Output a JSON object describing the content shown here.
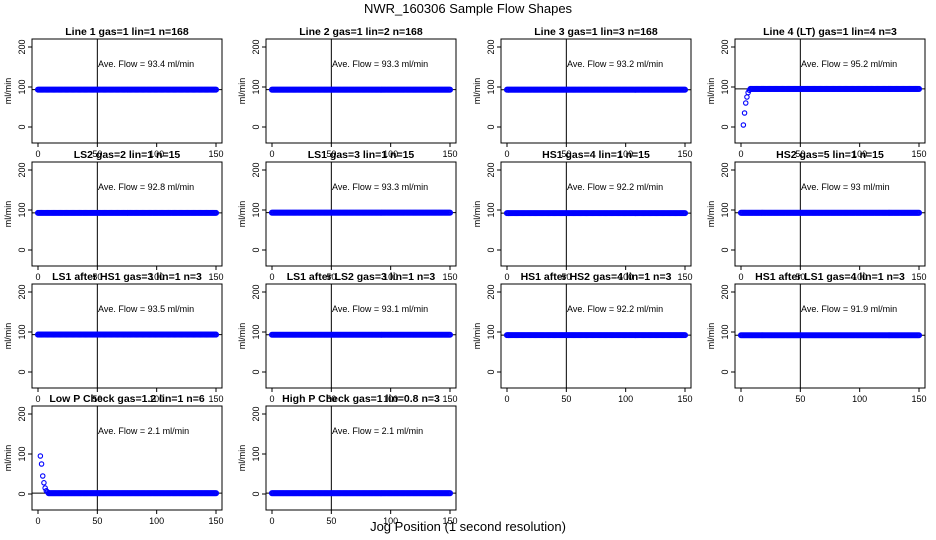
{
  "figure": {
    "title": "NWR_160306  Sample Flow Shapes",
    "xlabel": "Jog Position (1 second resolution)"
  },
  "colors": {
    "points": "#0000ff",
    "axes": "#000000"
  },
  "chart_data": [
    {
      "type": "scatter",
      "title": "Line 1 gas=1 lin=1 n=168",
      "ylabel": "ml/min",
      "annotation": "Ave. Flow = 93.4  ml/min",
      "xlim": [
        0,
        150
      ],
      "ylim": [
        -40,
        220
      ],
      "xticks": [
        0,
        50,
        100,
        150
      ],
      "yticks": [
        0,
        100,
        200
      ],
      "vline": 50,
      "hline": 93.4,
      "shape": "flat",
      "level": 93.4
    },
    {
      "type": "scatter",
      "title": "Line 2 gas=1 lin=2 n=168",
      "ylabel": "ml/min",
      "annotation": "Ave. Flow = 93.3  ml/min",
      "xlim": [
        0,
        150
      ],
      "ylim": [
        -40,
        220
      ],
      "xticks": [
        0,
        50,
        100,
        150
      ],
      "yticks": [
        0,
        100,
        200
      ],
      "vline": 50,
      "hline": 93.3,
      "shape": "flat",
      "level": 93.3
    },
    {
      "type": "scatter",
      "title": "Line 3 gas=1 lin=3 n=168",
      "ylabel": "ml/min",
      "annotation": "Ave. Flow = 93.2  ml/min",
      "xlim": [
        0,
        150
      ],
      "ylim": [
        -40,
        220
      ],
      "xticks": [
        0,
        50,
        100,
        150
      ],
      "yticks": [
        0,
        100,
        200
      ],
      "vline": 50,
      "hline": 93.2,
      "shape": "flat",
      "level": 93.2
    },
    {
      "type": "scatter",
      "title": "Line 4 (LT) gas=1 lin=4 n=3",
      "ylabel": "ml/min",
      "annotation": "Ave. Flow = 95.2  ml/min",
      "xlim": [
        0,
        150
      ],
      "ylim": [
        -40,
        220
      ],
      "xticks": [
        0,
        50,
        100,
        150
      ],
      "yticks": [
        0,
        100,
        200
      ],
      "vline": 50,
      "hline": 95.2,
      "shape": "rise",
      "level": 95.2,
      "start_points": [
        [
          2,
          5
        ],
        [
          3,
          35
        ],
        [
          4,
          60
        ],
        [
          5,
          75
        ],
        [
          6,
          86
        ],
        [
          7,
          92
        ]
      ]
    },
    {
      "type": "scatter",
      "title": "LS2 gas=2 lin=1 n=15",
      "ylabel": "ml/min",
      "annotation": "Ave. Flow = 92.8  ml/min",
      "xlim": [
        0,
        150
      ],
      "ylim": [
        -40,
        220
      ],
      "xticks": [
        0,
        50,
        100,
        150
      ],
      "yticks": [
        0,
        100,
        200
      ],
      "vline": 50,
      "hline": 92.8,
      "shape": "flat",
      "level": 92.8
    },
    {
      "type": "scatter",
      "title": "LS1 gas=3 lin=1 n=15",
      "ylabel": "ml/min",
      "annotation": "Ave. Flow = 93.3  ml/min",
      "xlim": [
        0,
        150
      ],
      "ylim": [
        -40,
        220
      ],
      "xticks": [
        0,
        50,
        100,
        150
      ],
      "yticks": [
        0,
        100,
        200
      ],
      "vline": 50,
      "hline": 93.3,
      "shape": "flat",
      "level": 93.3
    },
    {
      "type": "scatter",
      "title": "HS1 gas=4 lin=1 n=15",
      "ylabel": "ml/min",
      "annotation": "Ave. Flow = 92.2  ml/min",
      "xlim": [
        0,
        150
      ],
      "ylim": [
        -40,
        220
      ],
      "xticks": [
        0,
        50,
        100,
        150
      ],
      "yticks": [
        0,
        100,
        200
      ],
      "vline": 50,
      "hline": 92.2,
      "shape": "flat",
      "level": 92.2
    },
    {
      "type": "scatter",
      "title": "HS2 gas=5 lin=1 n=15",
      "ylabel": "ml/min",
      "annotation": "Ave. Flow = 93  ml/min",
      "xlim": [
        0,
        150
      ],
      "ylim": [
        -40,
        220
      ],
      "xticks": [
        0,
        50,
        100,
        150
      ],
      "yticks": [
        0,
        100,
        200
      ],
      "vline": 50,
      "hline": 93,
      "shape": "flat",
      "level": 93
    },
    {
      "type": "scatter",
      "title": "LS1 after HS1 gas=3 lin=1 n=3",
      "ylabel": "ml/min",
      "annotation": "Ave. Flow = 93.5  ml/min",
      "xlim": [
        0,
        150
      ],
      "ylim": [
        -40,
        220
      ],
      "xticks": [
        0,
        50,
        100,
        150
      ],
      "yticks": [
        0,
        100,
        200
      ],
      "vline": 50,
      "hline": 93.5,
      "shape": "flat",
      "level": 93.5
    },
    {
      "type": "scatter",
      "title": "LS1 after LS2 gas=3 lin=1 n=3",
      "ylabel": "ml/min",
      "annotation": "Ave. Flow = 93.1  ml/min",
      "xlim": [
        0,
        150
      ],
      "ylim": [
        -40,
        220
      ],
      "xticks": [
        0,
        50,
        100,
        150
      ],
      "yticks": [
        0,
        100,
        200
      ],
      "vline": 50,
      "hline": 93.1,
      "shape": "flat",
      "level": 93.1
    },
    {
      "type": "scatter",
      "title": "HS1 after HS2 gas=4 lin=1 n=3",
      "ylabel": "ml/min",
      "annotation": "Ave. Flow = 92.2  ml/min",
      "xlim": [
        0,
        150
      ],
      "ylim": [
        -40,
        220
      ],
      "xticks": [
        0,
        50,
        100,
        150
      ],
      "yticks": [
        0,
        100,
        200
      ],
      "vline": 50,
      "hline": 92.2,
      "shape": "flat",
      "level": 92.2
    },
    {
      "type": "scatter",
      "title": "HS1 after LS1 gas=4 lin=1 n=3",
      "ylabel": "ml/min",
      "annotation": "Ave. Flow = 91.9  ml/min",
      "xlim": [
        0,
        150
      ],
      "ylim": [
        -40,
        220
      ],
      "xticks": [
        0,
        50,
        100,
        150
      ],
      "yticks": [
        0,
        100,
        200
      ],
      "vline": 50,
      "hline": 91.9,
      "shape": "flat",
      "level": 91.9
    },
    {
      "type": "scatter",
      "title": "Low P Check gas=1.2 lin=1 n=6",
      "ylabel": "ml/min",
      "annotation": "Ave. Flow = 2.1  ml/min",
      "xlim": [
        0,
        150
      ],
      "ylim": [
        -40,
        220
      ],
      "xticks": [
        0,
        50,
        100,
        150
      ],
      "yticks": [
        0,
        100,
        200
      ],
      "vline": 50,
      "hline": 2.1,
      "shape": "decay",
      "level": 2.1,
      "start_points": [
        [
          2,
          95
        ],
        [
          3,
          75
        ],
        [
          4,
          45
        ],
        [
          5,
          28
        ],
        [
          6,
          15
        ],
        [
          7,
          8
        ],
        [
          8,
          5
        ]
      ]
    },
    {
      "type": "scatter",
      "title": "High P Check gas=1 lin=0.8 n=3",
      "ylabel": "ml/min",
      "annotation": "Ave. Flow = 2.1  ml/min",
      "xlim": [
        0,
        150
      ],
      "ylim": [
        -40,
        220
      ],
      "xticks": [
        0,
        50,
        100,
        150
      ],
      "yticks": [
        0,
        100,
        200
      ],
      "vline": 50,
      "hline": 2.1,
      "shape": "flat",
      "level": 2.1
    }
  ]
}
